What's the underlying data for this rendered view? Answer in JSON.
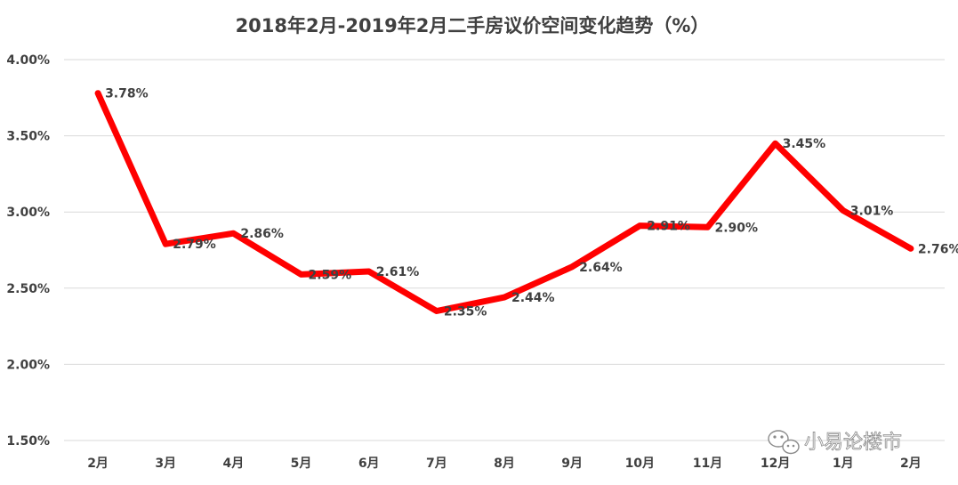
{
  "chart_data": {
    "type": "line",
    "title": "2018年2月-2019年2月二手房议价空间变化趋势（%）",
    "categories": [
      "2月",
      "3月",
      "4月",
      "5月",
      "6月",
      "7月",
      "8月",
      "9月",
      "10月",
      "11月",
      "12月",
      "1月",
      "2月"
    ],
    "series": [
      {
        "values": [
          3.78,
          2.79,
          2.86,
          2.59,
          2.61,
          2.35,
          2.44,
          2.64,
          2.91,
          2.9,
          3.45,
          3.01,
          2.76
        ],
        "data_labels": [
          "3.78%",
          "2.79%",
          "2.86%",
          "2.59%",
          "2.61%",
          "2.35%",
          "2.44%",
          "2.64%",
          "2.91%",
          "2.90%",
          "3.45%",
          "3.01%",
          "2.76%"
        ],
        "color": "#ff0000"
      }
    ],
    "yticks": [
      1.5,
      2.0,
      2.5,
      3.0,
      3.5,
      4.0
    ],
    "ytick_labels": [
      "1.50%",
      "2.00%",
      "2.50%",
      "3.00%",
      "3.50%",
      "4.00%"
    ],
    "ylim": [
      1.5,
      4.0
    ],
    "grid": true,
    "legend": "none"
  },
  "watermark": {
    "text": "小易论楼市",
    "icon": "wechat-icon"
  }
}
